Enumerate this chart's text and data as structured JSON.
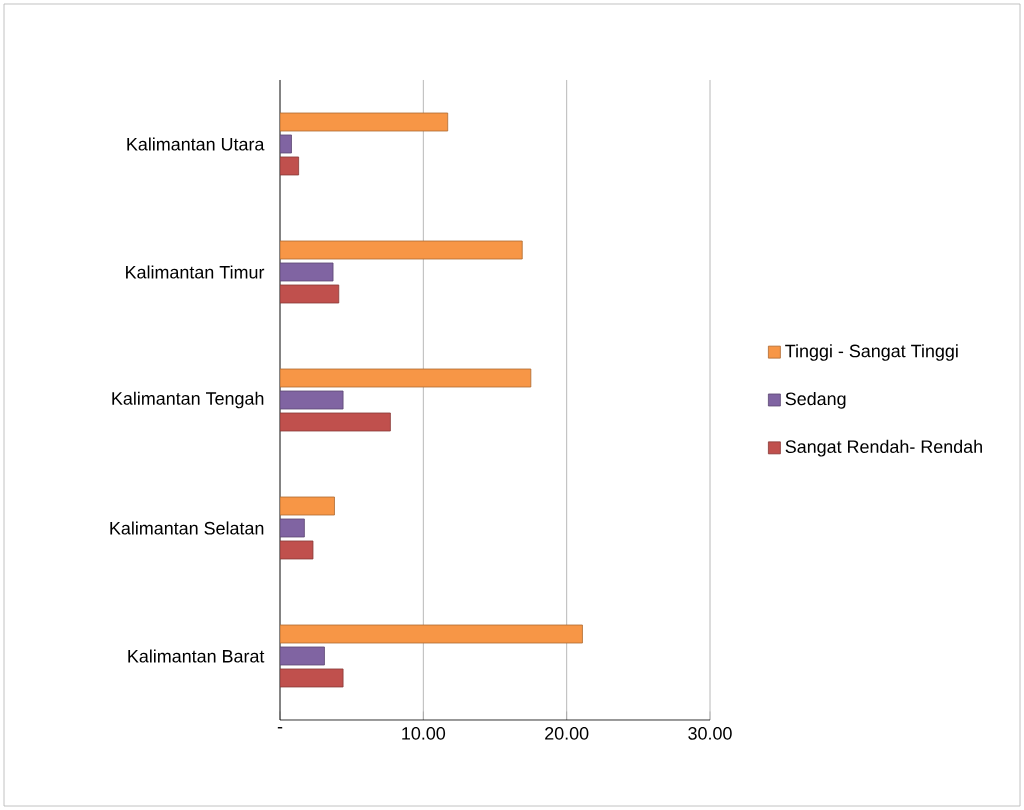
{
  "chart_data": {
    "type": "bar",
    "orientation": "horizontal",
    "categories": [
      "Kalimantan Utara",
      "Kalimantan Timur",
      "Kalimantan Tengah",
      "Kalimantan Selatan",
      "Kalimantan Barat"
    ],
    "series": [
      {
        "name": "Tinggi - Sangat Tinggi",
        "color": "#f79646",
        "values": [
          11.7,
          16.9,
          17.5,
          3.8,
          21.1
        ]
      },
      {
        "name": "Sedang",
        "color": "#8064a2",
        "values": [
          0.8,
          3.7,
          4.4,
          1.7,
          3.1
        ]
      },
      {
        "name": "Sangat Rendah- Rendah",
        "color": "#c0504d",
        "values": [
          1.3,
          4.1,
          7.7,
          2.3,
          4.4
        ]
      }
    ],
    "xlim": [
      0,
      30
    ],
    "xticks": [
      {
        "value": 0,
        "label": "-"
      },
      {
        "value": 10,
        "label": "10.00"
      },
      {
        "value": 20,
        "label": "20.00"
      },
      {
        "value": 30,
        "label": "30.00"
      }
    ],
    "grid": "x",
    "legend": "right"
  }
}
